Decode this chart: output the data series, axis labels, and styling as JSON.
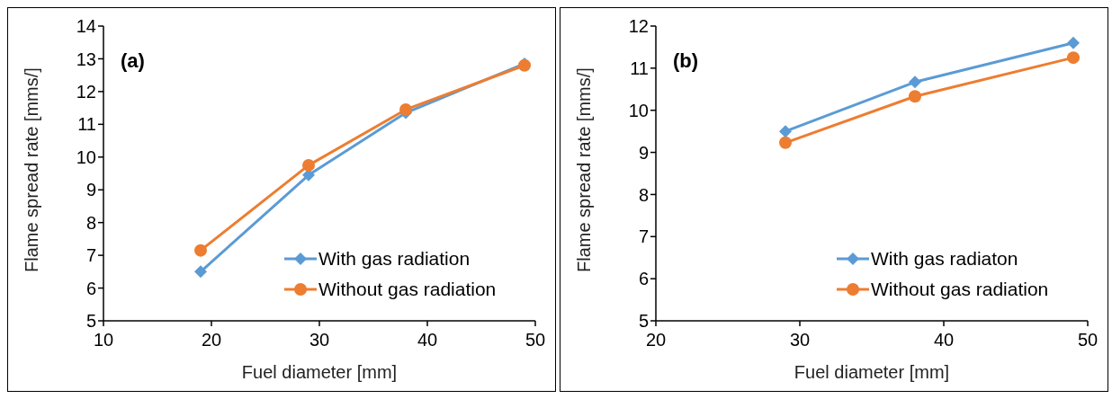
{
  "chart_data": [
    {
      "type": "line",
      "xlabel": "Fuel diameter [mm]",
      "ylabel": "Flame spread rate [mms/]",
      "annotations": [
        "(a)"
      ],
      "xlim": [
        10,
        50
      ],
      "xticks": [
        10,
        20,
        30,
        40,
        50
      ],
      "ylim": [
        5,
        14
      ],
      "yticks": [
        5,
        6,
        7,
        8,
        9,
        10,
        11,
        12,
        13,
        14
      ],
      "grid": false,
      "legend": "bottom right",
      "line_style": "solid",
      "series": [
        {
          "name": "With gas radiation",
          "color": "#5b9bd5",
          "marker": "diamond",
          "x": [
            19,
            29,
            38,
            49
          ],
          "values": [
            6.5,
            9.45,
            11.35,
            12.85
          ]
        },
        {
          "name": "Without gas radiation",
          "color": "#ed7d31",
          "marker": "circle",
          "x": [
            19,
            29,
            38,
            49
          ],
          "values": [
            7.15,
            9.75,
            11.45,
            12.8
          ]
        }
      ]
    },
    {
      "type": "line",
      "xlabel": "Fuel diameter [mm]",
      "ylabel": "Flame spread rate [mms/]",
      "annotations": [
        "(b)"
      ],
      "xlim": [
        20,
        50
      ],
      "xticks": [
        20,
        30,
        40,
        50
      ],
      "ylim": [
        5,
        12
      ],
      "yticks": [
        5,
        6,
        7,
        8,
        9,
        10,
        11,
        12
      ],
      "grid": false,
      "legend": "bottom right",
      "line_style": "solid",
      "series": [
        {
          "name": "With gas radiaton",
          "color": "#5b9bd5",
          "marker": "diamond",
          "x": [
            29,
            38,
            49
          ],
          "values": [
            9.5,
            10.67,
            11.6
          ]
        },
        {
          "name": "Without gas radiation",
          "color": "#ed7d31",
          "marker": "circle",
          "x": [
            29,
            38,
            49
          ],
          "values": [
            9.23,
            10.33,
            11.25
          ]
        }
      ]
    }
  ]
}
